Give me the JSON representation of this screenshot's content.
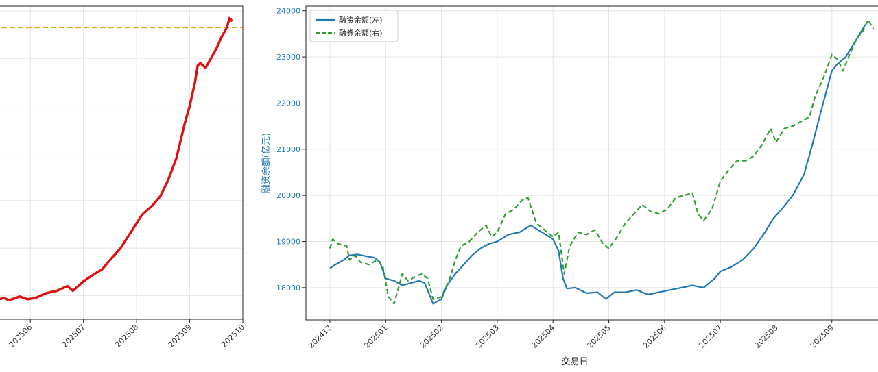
{
  "chart_data": [
    {
      "type": "line",
      "title": "",
      "xlabel": "",
      "ylabel": "",
      "x_tick_labels": [
        "202506",
        "202507",
        "202508",
        "202509",
        "202510"
      ],
      "x_tick_values": [
        5,
        6,
        7,
        8,
        9
      ],
      "xlim": [
        4.3,
        9.0
      ],
      "ylim": [
        17500,
        24100
      ],
      "grid": true,
      "reference_line": {
        "value": 23650,
        "style": "dashed",
        "color": "#f0a30a"
      },
      "series": [
        {
          "color": "#e01010",
          "points": [
            [
              4.3,
              17880
            ],
            [
              4.5,
              17950
            ],
            [
              4.6,
              17900
            ],
            [
              4.8,
              17980
            ],
            [
              4.95,
              17920
            ],
            [
              5.1,
              17950
            ],
            [
              5.3,
              18050
            ],
            [
              5.5,
              18100
            ],
            [
              5.7,
              18200
            ],
            [
              5.8,
              18100
            ],
            [
              6.0,
              18300
            ],
            [
              6.2,
              18450
            ],
            [
              6.35,
              18550
            ],
            [
              6.5,
              18750
            ],
            [
              6.7,
              19000
            ],
            [
              6.9,
              19350
            ],
            [
              7.1,
              19700
            ],
            [
              7.3,
              19900
            ],
            [
              7.45,
              20100
            ],
            [
              7.6,
              20450
            ],
            [
              7.75,
              20900
            ],
            [
              7.9,
              21600
            ],
            [
              8.0,
              22000
            ],
            [
              8.1,
              22500
            ],
            [
              8.15,
              22850
            ],
            [
              8.2,
              22900
            ],
            [
              8.3,
              22800
            ],
            [
              8.4,
              23000
            ],
            [
              8.5,
              23200
            ],
            [
              8.6,
              23450
            ],
            [
              8.7,
              23650
            ],
            [
              8.75,
              23850
            ],
            [
              8.8,
              23780
            ]
          ]
        }
      ]
    },
    {
      "type": "line",
      "title": "",
      "xlabel": "交易日",
      "ylabel": "融资余额(亿元)",
      "x_tick_labels": [
        "202412",
        "202501",
        "202502",
        "202503",
        "202504",
        "202505",
        "202506",
        "202507",
        "202508",
        "202509"
      ],
      "x_tick_values": [
        0,
        1,
        2,
        3,
        4,
        5,
        6,
        7,
        8,
        9
      ],
      "xlim": [
        -0.43,
        9.95
      ],
      "y_ticks": [
        18000,
        19000,
        20000,
        21000,
        22000,
        23000,
        24000
      ],
      "ylim": [
        17300,
        24100
      ],
      "grid": true,
      "legend_position": "top-left",
      "series": [
        {
          "name": "融资余额(左)",
          "color": "#1f77b4",
          "style": "solid",
          "points": [
            [
              0,
              18420
            ],
            [
              0.1,
              18500
            ],
            [
              0.25,
              18600
            ],
            [
              0.35,
              18700
            ],
            [
              0.5,
              18720
            ],
            [
              0.65,
              18680
            ],
            [
              0.8,
              18650
            ],
            [
              0.9,
              18550
            ],
            [
              1.0,
              18200
            ],
            [
              1.15,
              18150
            ],
            [
              1.3,
              18050
            ],
            [
              1.45,
              18100
            ],
            [
              1.6,
              18150
            ],
            [
              1.7,
              18100
            ],
            [
              1.85,
              17650
            ],
            [
              2.0,
              17750
            ],
            [
              2.1,
              18050
            ],
            [
              2.25,
              18300
            ],
            [
              2.4,
              18500
            ],
            [
              2.55,
              18700
            ],
            [
              2.7,
              18850
            ],
            [
              2.85,
              18950
            ],
            [
              3.0,
              19000
            ],
            [
              3.2,
              19150
            ],
            [
              3.4,
              19200
            ],
            [
              3.6,
              19350
            ],
            [
              3.8,
              19200
            ],
            [
              4.0,
              19050
            ],
            [
              4.1,
              18800
            ],
            [
              4.18,
              18200
            ],
            [
              4.25,
              17980
            ],
            [
              4.4,
              18000
            ],
            [
              4.6,
              17880
            ],
            [
              4.8,
              17900
            ],
            [
              4.95,
              17750
            ],
            [
              5.1,
              17900
            ],
            [
              5.3,
              17900
            ],
            [
              5.5,
              17950
            ],
            [
              5.7,
              17850
            ],
            [
              5.9,
              17900
            ],
            [
              6.1,
              17950
            ],
            [
              6.3,
              18000
            ],
            [
              6.5,
              18050
            ],
            [
              6.7,
              18000
            ],
            [
              6.9,
              18200
            ],
            [
              7.0,
              18350
            ],
            [
              7.2,
              18450
            ],
            [
              7.4,
              18600
            ],
            [
              7.6,
              18850
            ],
            [
              7.8,
              19200
            ],
            [
              7.95,
              19500
            ],
            [
              8.1,
              19700
            ],
            [
              8.3,
              20000
            ],
            [
              8.5,
              20450
            ],
            [
              8.65,
              21100
            ],
            [
              8.8,
              21800
            ],
            [
              9.0,
              22700
            ],
            [
              9.1,
              22850
            ],
            [
              9.25,
              23000
            ],
            [
              9.4,
              23300
            ],
            [
              9.5,
              23500
            ],
            [
              9.6,
              23700
            ]
          ]
        },
        {
          "name": "融券余额(右)",
          "color": "#2ca02c",
          "style": "dashed",
          "points": [
            [
              0,
              18850
            ],
            [
              0.05,
              19050
            ],
            [
              0.15,
              18950
            ],
            [
              0.3,
              18900
            ],
            [
              0.35,
              18600
            ],
            [
              0.45,
              18700
            ],
            [
              0.55,
              18550
            ],
            [
              0.7,
              18500
            ],
            [
              0.85,
              18600
            ],
            [
              0.95,
              18450
            ],
            [
              1.05,
              17800
            ],
            [
              1.15,
              17650
            ],
            [
              1.3,
              18300
            ],
            [
              1.4,
              18150
            ],
            [
              1.55,
              18250
            ],
            [
              1.65,
              18300
            ],
            [
              1.75,
              18200
            ],
            [
              1.85,
              17750
            ],
            [
              2.0,
              17800
            ],
            [
              2.15,
              18200
            ],
            [
              2.25,
              18600
            ],
            [
              2.35,
              18900
            ],
            [
              2.5,
              19000
            ],
            [
              2.65,
              19200
            ],
            [
              2.8,
              19350
            ],
            [
              2.9,
              19100
            ],
            [
              3.0,
              19200
            ],
            [
              3.15,
              19600
            ],
            [
              3.3,
              19700
            ],
            [
              3.45,
              19900
            ],
            [
              3.55,
              19950
            ],
            [
              3.7,
              19400
            ],
            [
              3.85,
              19250
            ],
            [
              4.0,
              19100
            ],
            [
              4.1,
              19200
            ],
            [
              4.2,
              18300
            ],
            [
              4.3,
              18900
            ],
            [
              4.45,
              19200
            ],
            [
              4.6,
              19150
            ],
            [
              4.75,
              19250
            ],
            [
              4.9,
              18950
            ],
            [
              5.0,
              18850
            ],
            [
              5.15,
              19100
            ],
            [
              5.3,
              19400
            ],
            [
              5.45,
              19600
            ],
            [
              5.6,
              19800
            ],
            [
              5.75,
              19650
            ],
            [
              5.9,
              19600
            ],
            [
              6.05,
              19700
            ],
            [
              6.2,
              19950
            ],
            [
              6.35,
              20000
            ],
            [
              6.5,
              20050
            ],
            [
              6.6,
              19600
            ],
            [
              6.7,
              19450
            ],
            [
              6.85,
              19700
            ],
            [
              7.0,
              20300
            ],
            [
              7.15,
              20550
            ],
            [
              7.3,
              20750
            ],
            [
              7.45,
              20750
            ],
            [
              7.6,
              20850
            ],
            [
              7.75,
              21100
            ],
            [
              7.9,
              21450
            ],
            [
              8.0,
              21150
            ],
            [
              8.15,
              21450
            ],
            [
              8.3,
              21500
            ],
            [
              8.45,
              21600
            ],
            [
              8.6,
              21700
            ],
            [
              8.7,
              22150
            ],
            [
              8.85,
              22550
            ],
            [
              9.0,
              23050
            ],
            [
              9.1,
              22950
            ],
            [
              9.2,
              22700
            ],
            [
              9.3,
              23000
            ],
            [
              9.45,
              23400
            ],
            [
              9.55,
              23550
            ],
            [
              9.65,
              23800
            ],
            [
              9.75,
              23600
            ]
          ]
        }
      ]
    }
  ]
}
